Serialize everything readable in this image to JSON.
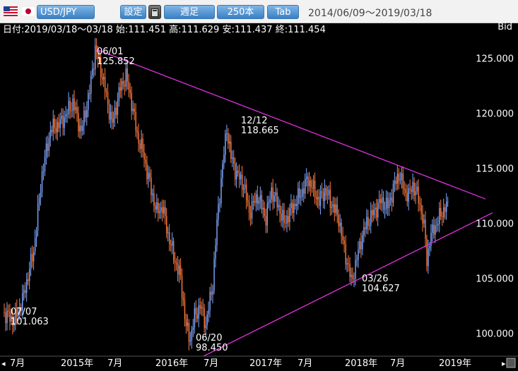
{
  "toolbar": {
    "pair": "USD/JPY",
    "settings_label": "設定",
    "period_label": "週足",
    "bars_label": "250本",
    "tab_label": "Tab",
    "date_range": "2014/06/09～2019/03/18",
    "flags": [
      "us-flag-icon",
      "jp-flag-icon"
    ]
  },
  "info_line": "日付:2019/03/18～03/18 始:111.451 高:111.629 安:111.437 終:111.454",
  "bid_label": "Bid",
  "colors": {
    "background": "#000000",
    "up": "#7fa8ff",
    "down": "#ff7a3c",
    "trendline": "#e030e0",
    "text": "#ffffff"
  },
  "chart_data": {
    "type": "candlestick",
    "y_axis": {
      "ticks": [
        "125.000",
        "120.000",
        "115.000",
        "110.000",
        "105.000",
        "100.000"
      ],
      "tick_values": [
        125,
        120,
        115,
        110,
        105,
        100
      ],
      "ylim": [
        97.9,
        127.1
      ]
    },
    "x_axis": {
      "ticks": [
        "7月",
        "2015年",
        "7月",
        "2016年",
        "7月",
        "2017年",
        "7月",
        "2018年",
        "7月",
        "2019年"
      ]
    },
    "price_path": [
      [
        0,
        101.9
      ],
      [
        8,
        101.1
      ],
      [
        14,
        103.0
      ],
      [
        22,
        107.5
      ],
      [
        28,
        114.5
      ],
      [
        34,
        118.5
      ],
      [
        42,
        119.2
      ],
      [
        50,
        121.0
      ],
      [
        56,
        118.3
      ],
      [
        62,
        122.0
      ],
      [
        66,
        125.85
      ],
      [
        70,
        124.0
      ],
      [
        74,
        121.5
      ],
      [
        78,
        119.0
      ],
      [
        84,
        122.3
      ],
      [
        88,
        123.4
      ],
      [
        92,
        121.0
      ],
      [
        96,
        118.0
      ],
      [
        100,
        116.5
      ],
      [
        106,
        113.0
      ],
      [
        110,
        111.0
      ],
      [
        114,
        111.5
      ],
      [
        118,
        109.0
      ],
      [
        122,
        107.0
      ],
      [
        127,
        105.0
      ],
      [
        131,
        100.5
      ],
      [
        134,
        99.5
      ],
      [
        137,
        101.5
      ],
      [
        141,
        102.5
      ],
      [
        145,
        100.8
      ],
      [
        150,
        104.5
      ],
      [
        153,
        110.0
      ],
      [
        156,
        114.0
      ],
      [
        159,
        117.5
      ],
      [
        160,
        118.665
      ],
      [
        163,
        116.0
      ],
      [
        167,
        114.5
      ],
      [
        172,
        113.5
      ],
      [
        176,
        111.0
      ],
      [
        182,
        112.5
      ],
      [
        188,
        110.5
      ],
      [
        192,
        113.0
      ],
      [
        197,
        111.5
      ],
      [
        201,
        110.0
      ],
      [
        205,
        111.0
      ],
      [
        212,
        112.5
      ],
      [
        218,
        114.0
      ],
      [
        222,
        113.0
      ],
      [
        226,
        112.0
      ],
      [
        230,
        113.0
      ],
      [
        236,
        111.5
      ],
      [
        240,
        110.5
      ],
      [
        244,
        107.5
      ],
      [
        247,
        106.0
      ],
      [
        249,
        104.627
      ],
      [
        252,
        106.2
      ],
      [
        256,
        108.5
      ],
      [
        260,
        110.0
      ],
      [
        265,
        111.0
      ],
      [
        270,
        112.0
      ],
      [
        275,
        111.5
      ],
      [
        280,
        113.5
      ],
      [
        283,
        114.5
      ],
      [
        287,
        113.0
      ],
      [
        290,
        112.5
      ],
      [
        293,
        113.5
      ],
      [
        297,
        112.2
      ],
      [
        300,
        110.5
      ],
      [
        302,
        108.5
      ],
      [
        303,
        106.5
      ],
      [
        305,
        108.5
      ],
      [
        308,
        109.5
      ],
      [
        312,
        110.5
      ],
      [
        316,
        111.5
      ],
      [
        318,
        111.45
      ]
    ],
    "annotations": [
      {
        "date": "06/01",
        "value": "125.852"
      },
      {
        "date": "12/12",
        "value": "118.665"
      },
      {
        "date": "07/07",
        "value": "101.063"
      },
      {
        "date": "06/20",
        "value": "98.450"
      },
      {
        "date": "03/26",
        "value": "104.627"
      }
    ],
    "trendlines": [
      {
        "from": [
          66,
          125.85
        ],
        "to": [
          345,
          112.2
        ]
      },
      {
        "from": [
          126,
          96.8
        ],
        "to": [
          350,
          110.95
        ]
      }
    ]
  }
}
